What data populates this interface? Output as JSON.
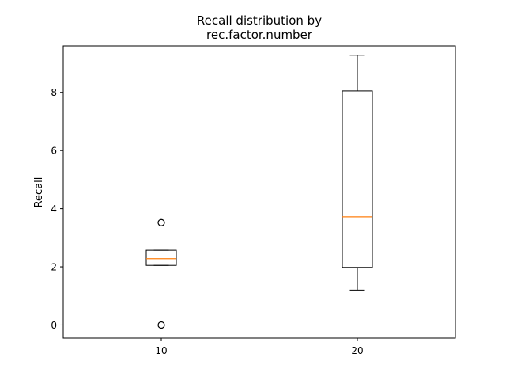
{
  "chart_data": {
    "type": "box",
    "title_line1": "Recall distribution by",
    "title_line2": "rec.factor.number",
    "xlabel": "",
    "ylabel": "Recall",
    "ylim": [
      -0.45,
      9.6
    ],
    "yticks": [
      0,
      2,
      4,
      6,
      8
    ],
    "grid": false,
    "colors": {
      "box": "#000000",
      "median": "#ff7f0e",
      "background": "#ffffff"
    },
    "categories": [
      "10",
      "20"
    ],
    "boxes": [
      {
        "label": "10",
        "whisker_low": 2.05,
        "q1": 2.05,
        "median": 2.28,
        "q3": 2.57,
        "whisker_high": 2.57,
        "outliers": [
          0.0,
          3.52
        ]
      },
      {
        "label": "20",
        "whisker_low": 1.2,
        "q1": 1.98,
        "median": 3.72,
        "q3": 8.05,
        "whisker_high": 9.28,
        "outliers": []
      }
    ]
  }
}
